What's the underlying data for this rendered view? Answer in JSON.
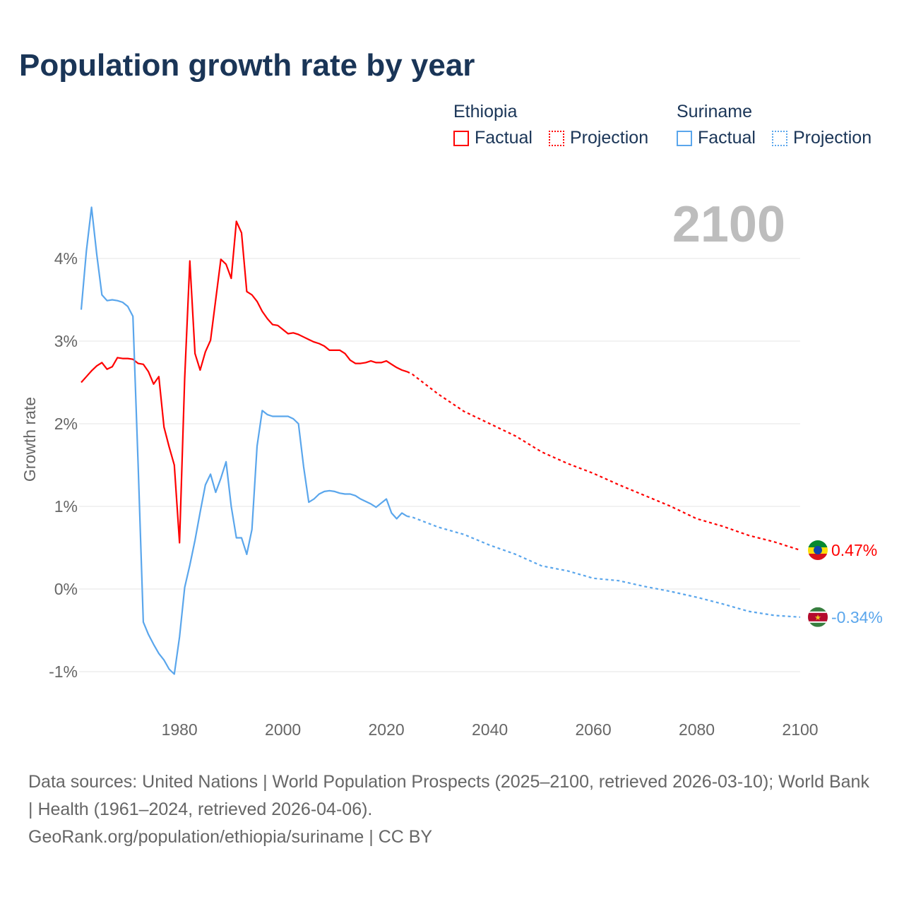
{
  "title": "Population growth rate by year",
  "legend": {
    "groups": [
      {
        "name": "Ethiopia",
        "color": "#ff0000",
        "factual": "Factual",
        "projection": "Projection"
      },
      {
        "name": "Suriname",
        "color": "#5aa6ec",
        "factual": "Factual",
        "projection": "Projection"
      }
    ]
  },
  "year_display": "2100",
  "footer": {
    "sources": "Data sources: United Nations | World Population Prospects (2025–2100, retrieved 2026-03-10); World Bank | Health (1961–2024, retrieved 2026-04-06).",
    "link": "GeoRank.org/population/ethiopia/suriname | CC BY"
  },
  "chart_data": {
    "type": "line",
    "title": "Population growth rate by year",
    "xlabel": "",
    "ylabel": "Growth rate",
    "xlim": [
      1961,
      2100
    ],
    "ylim": [
      -1.5,
      4.8
    ],
    "x_ticks": [
      1980,
      2000,
      2020,
      2040,
      2060,
      2080,
      2100
    ],
    "y_ticks": [
      -1,
      0,
      1,
      2,
      3,
      4
    ],
    "y_tick_labels": [
      "-1%",
      "0%",
      "1%",
      "2%",
      "3%",
      "4%"
    ],
    "grid": true,
    "series": [
      {
        "name": "Ethiopia",
        "color": "#ff0000",
        "end_label": "0.47%",
        "factual": {
          "x": [
            1961,
            1962,
            1963,
            1964,
            1965,
            1966,
            1967,
            1968,
            1969,
            1970,
            1971,
            1972,
            1973,
            1974,
            1975,
            1976,
            1977,
            1978,
            1979,
            1980,
            1981,
            1982,
            1983,
            1984,
            1985,
            1986,
            1987,
            1988,
            1989,
            1990,
            1991,
            1992,
            1993,
            1994,
            1995,
            1996,
            1997,
            1998,
            1999,
            2000,
            2001,
            2002,
            2003,
            2004,
            2005,
            2006,
            2007,
            2008,
            2009,
            2010,
            2011,
            2012,
            2013,
            2014,
            2015,
            2016,
            2017,
            2018,
            2019,
            2020,
            2021,
            2022,
            2023,
            2024
          ],
          "y": [
            2.5,
            2.57,
            2.64,
            2.7,
            2.74,
            2.66,
            2.69,
            2.8,
            2.79,
            2.79,
            2.78,
            2.73,
            2.72,
            2.63,
            2.48,
            2.57,
            1.96,
            1.72,
            1.5,
            0.56,
            2.55,
            3.97,
            2.85,
            2.65,
            2.87,
            3.01,
            3.5,
            3.99,
            3.93,
            3.76,
            4.45,
            4.31,
            3.6,
            3.56,
            3.48,
            3.36,
            3.27,
            3.2,
            3.19,
            3.14,
            3.09,
            3.1,
            3.08,
            3.05,
            3.02,
            2.99,
            2.97,
            2.94,
            2.89,
            2.89,
            2.89,
            2.85,
            2.77,
            2.73,
            2.73,
            2.74,
            2.76,
            2.74,
            2.74,
            2.76,
            2.72,
            2.68,
            2.65,
            2.63
          ]
        },
        "projection": {
          "x": [
            2024,
            2025,
            2030,
            2035,
            2040,
            2045,
            2050,
            2055,
            2060,
            2065,
            2070,
            2075,
            2080,
            2085,
            2090,
            2095,
            2100
          ],
          "y": [
            2.63,
            2.6,
            2.36,
            2.15,
            2.0,
            1.85,
            1.66,
            1.52,
            1.4,
            1.26,
            1.13,
            1.0,
            0.85,
            0.76,
            0.65,
            0.57,
            0.47
          ]
        }
      },
      {
        "name": "Suriname",
        "color": "#5aa6ec",
        "end_label": "-0.34%",
        "factual": {
          "x": [
            1961,
            1962,
            1963,
            1964,
            1965,
            1966,
            1967,
            1968,
            1969,
            1970,
            1971,
            1972,
            1973,
            1974,
            1975,
            1976,
            1977,
            1978,
            1979,
            1980,
            1981,
            1982,
            1983,
            1984,
            1985,
            1986,
            1987,
            1988,
            1989,
            1990,
            1991,
            1992,
            1993,
            1994,
            1995,
            1996,
            1997,
            1998,
            1999,
            2000,
            2001,
            2002,
            2003,
            2004,
            2005,
            2006,
            2007,
            2008,
            2009,
            2010,
            2011,
            2012,
            2013,
            2014,
            2015,
            2016,
            2017,
            2018,
            2019,
            2020,
            2021,
            2022,
            2023,
            2024
          ],
          "y": [
            3.38,
            4.09,
            4.62,
            4.05,
            3.56,
            3.49,
            3.5,
            3.49,
            3.47,
            3.42,
            3.3,
            1.5,
            -0.4,
            -0.55,
            -0.67,
            -0.78,
            -0.86,
            -0.97,
            -1.03,
            -0.58,
            0.02,
            0.29,
            0.59,
            0.93,
            1.26,
            1.39,
            1.17,
            1.34,
            1.54,
            1.0,
            0.62,
            0.62,
            0.42,
            0.72,
            1.73,
            2.16,
            2.11,
            2.09,
            2.09,
            2.09,
            2.09,
            2.06,
            2.0,
            1.48,
            1.05,
            1.09,
            1.15,
            1.18,
            1.19,
            1.18,
            1.16,
            1.15,
            1.15,
            1.13,
            1.09,
            1.06,
            1.03,
            0.99,
            1.04,
            1.09,
            0.92,
            0.85,
            0.92,
            0.88
          ]
        },
        "projection": {
          "x": [
            2024,
            2025,
            2030,
            2035,
            2040,
            2045,
            2050,
            2055,
            2060,
            2065,
            2070,
            2075,
            2080,
            2085,
            2090,
            2095,
            2100
          ],
          "y": [
            0.88,
            0.87,
            0.75,
            0.66,
            0.53,
            0.42,
            0.28,
            0.22,
            0.13,
            0.1,
            0.03,
            -0.03,
            -0.1,
            -0.18,
            -0.27,
            -0.32,
            -0.34
          ]
        }
      }
    ]
  }
}
